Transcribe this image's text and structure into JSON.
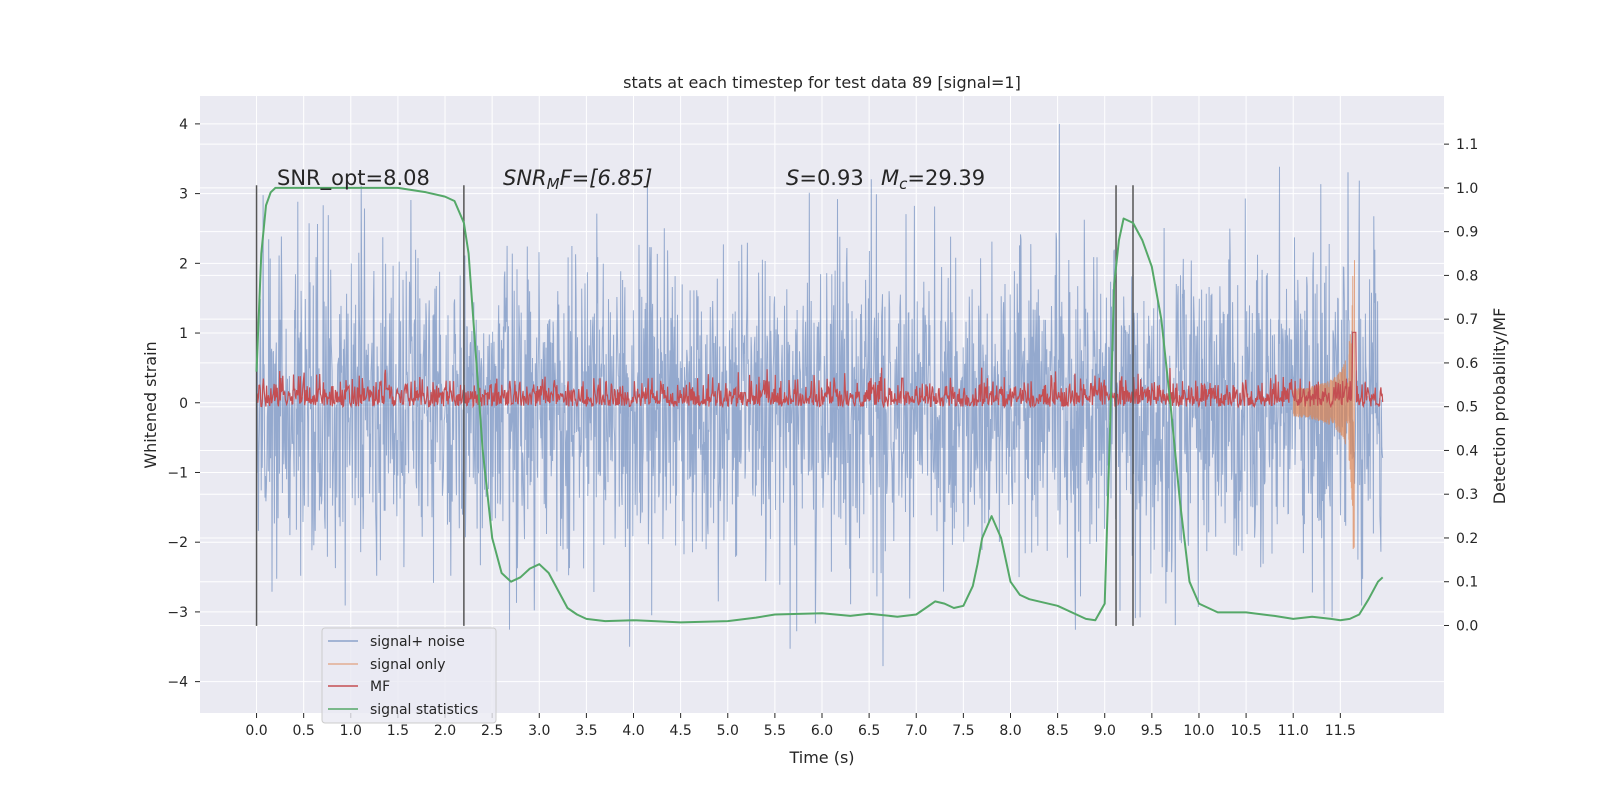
{
  "chart_data": {
    "type": "line",
    "title": "stats at each timestep for test data 89 [signal=1]",
    "xlabel": "Time (s)",
    "ylabel_left": "Whitened strain",
    "ylabel_right": "Detection probability/MF",
    "xlim": [
      -0.6,
      12.6
    ],
    "ylim_left": [
      -4.45,
      4.4
    ],
    "ylim_right": [
      -0.2,
      1.21
    ],
    "x_ticks": [
      "0.0",
      "0.5",
      "1.0",
      "1.5",
      "2.0",
      "2.5",
      "3.0",
      "3.5",
      "4.0",
      "4.5",
      "5.0",
      "5.5",
      "6.0",
      "6.5",
      "7.0",
      "7.5",
      "8.0",
      "8.5",
      "9.0",
      "9.5",
      "10.0",
      "10.5",
      "11.0",
      "11.5"
    ],
    "y_left_ticks": [
      "−4",
      "−3",
      "−2",
      "−1",
      "0",
      "1",
      "2",
      "3",
      "4"
    ],
    "y_right_ticks": [
      "0.0",
      "0.1",
      "0.2",
      "0.3",
      "0.4",
      "0.5",
      "0.6",
      "0.7",
      "0.8",
      "0.9",
      "1.0",
      "1.1"
    ],
    "grid": true,
    "legend_position": "lower-left",
    "annotations": {
      "snr_opt": "SNR_opt=8.08",
      "snr_mf_name": "SNR",
      "snr_mf_sub": "M",
      "snr_mf_rest": "F=[6.85]",
      "s_label": "S",
      "s_rest": "=0.93",
      "mc_label": "M",
      "mc_sub": "c",
      "mc_rest": "=29.39"
    },
    "vertical_lines": [
      0.0,
      2.2,
      9.12,
      9.3
    ],
    "series": [
      {
        "name": "signal+ noise",
        "color": "#4c72b0",
        "axis": "left",
        "description_range": [
          -4.1,
          4.0
        ],
        "x_range": [
          0.0,
          11.95
        ]
      },
      {
        "name": "signal only",
        "color": "#dd8452",
        "axis": "left",
        "x_range": [
          11.0,
          11.65
        ],
        "peak_amplitude": 2.1
      },
      {
        "name": "MF",
        "color": "#c44e52",
        "axis": "right",
        "baseline": 0.5,
        "spike": {
          "x": 11.65,
          "y": 0.67
        }
      },
      {
        "name": "signal statistics",
        "color": "#55a868",
        "axis": "right",
        "x": [
          0.0,
          0.05,
          0.1,
          0.15,
          0.2,
          0.3,
          0.5,
          1.0,
          1.5,
          1.8,
          2.0,
          2.1,
          2.2,
          2.25,
          2.3,
          2.35,
          2.4,
          2.5,
          2.6,
          2.7,
          2.8,
          2.9,
          3.0,
          3.1,
          3.2,
          3.3,
          3.4,
          3.5,
          3.7,
          4.0,
          4.5,
          5.0,
          5.3,
          5.5,
          6.0,
          6.3,
          6.5,
          6.8,
          7.0,
          7.1,
          7.2,
          7.3,
          7.4,
          7.5,
          7.6,
          7.65,
          7.7,
          7.8,
          7.9,
          8.0,
          8.1,
          8.2,
          8.5,
          8.8,
          8.9,
          9.0,
          9.05,
          9.1,
          9.15,
          9.2,
          9.3,
          9.4,
          9.5,
          9.6,
          9.7,
          9.8,
          9.9,
          10.0,
          10.2,
          10.5,
          10.8,
          11.0,
          11.2,
          11.4,
          11.5,
          11.6,
          11.7,
          11.8,
          11.9,
          11.95
        ],
        "values": [
          0.58,
          0.85,
          0.96,
          0.99,
          1.0,
          1.0,
          1.0,
          1.0,
          1.0,
          0.99,
          0.98,
          0.97,
          0.92,
          0.85,
          0.7,
          0.55,
          0.4,
          0.2,
          0.12,
          0.1,
          0.11,
          0.13,
          0.14,
          0.12,
          0.08,
          0.04,
          0.025,
          0.015,
          0.01,
          0.012,
          0.007,
          0.01,
          0.018,
          0.025,
          0.028,
          0.022,
          0.027,
          0.02,
          0.025,
          0.04,
          0.055,
          0.05,
          0.04,
          0.045,
          0.09,
          0.14,
          0.2,
          0.25,
          0.2,
          0.1,
          0.07,
          0.06,
          0.045,
          0.015,
          0.012,
          0.05,
          0.4,
          0.78,
          0.88,
          0.93,
          0.92,
          0.88,
          0.82,
          0.7,
          0.5,
          0.28,
          0.1,
          0.05,
          0.03,
          0.03,
          0.022,
          0.015,
          0.02,
          0.015,
          0.012,
          0.015,
          0.025,
          0.06,
          0.1,
          0.11
        ]
      }
    ]
  }
}
